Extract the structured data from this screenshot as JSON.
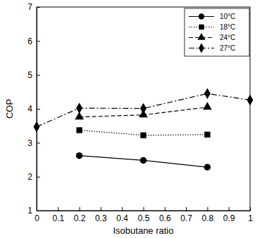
{
  "chart_data": {
    "type": "line",
    "x_label": "Isobutane ratio",
    "y_label": "COP",
    "xlim": [
      0,
      1
    ],
    "ylim": [
      1,
      7
    ],
    "xticks": [
      0,
      0.1,
      0.2,
      0.3,
      0.4,
      0.5,
      0.6,
      0.7,
      0.8,
      0.9,
      1
    ],
    "yticks": [
      1,
      2,
      3,
      4,
      5,
      6,
      7
    ],
    "legend": "upper right",
    "series": [
      {
        "name": "10°C",
        "color": "#000000",
        "marker": "circle",
        "line_style": "solid",
        "x": [
          0.2,
          0.5,
          0.8
        ],
        "values": [
          2.62,
          2.48,
          2.28
        ]
      },
      {
        "name": "18°C",
        "color": "#000000",
        "marker": "square",
        "line_style": "dotted",
        "x": [
          0.2,
          0.5,
          0.8
        ],
        "values": [
          3.37,
          3.22,
          3.24
        ]
      },
      {
        "name": "24°C",
        "color": "#000000",
        "marker": "triangle",
        "line_style": "dashed",
        "x": [
          0.2,
          0.5,
          0.8
        ],
        "values": [
          3.76,
          3.82,
          4.05
        ]
      },
      {
        "name": "27°C",
        "color": "#000000",
        "marker": "diamond",
        "line_style": "dashdot",
        "x": [
          0,
          0.2,
          0.5,
          0.8,
          1
        ],
        "values": [
          3.47,
          4.02,
          4.01,
          4.45,
          4.26
        ]
      }
    ]
  }
}
